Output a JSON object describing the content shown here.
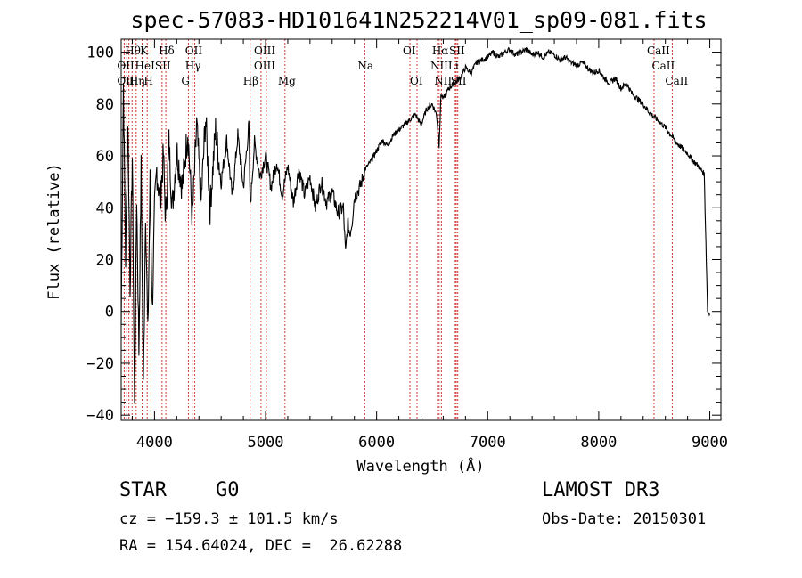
{
  "chart_data": {
    "type": "line",
    "title": "spec-57083-HD101641N252214V01_sp09-081.fits",
    "xlabel": "Wavelength (Å)",
    "ylabel": "Flux (relative)",
    "xlim": [
      3700,
      9100
    ],
    "ylim": [
      -42,
      105
    ],
    "xticks": [
      4000,
      5000,
      6000,
      7000,
      8000,
      9000
    ],
    "yticks": [
      -40,
      -20,
      0,
      20,
      40,
      60,
      80,
      100
    ],
    "series": [
      {
        "name": "flux",
        "x": [
          3700,
          3720,
          3740,
          3760,
          3780,
          3800,
          3820,
          3840,
          3860,
          3880,
          3900,
          3920,
          3940,
          3960,
          3980,
          4000,
          4020,
          4050,
          4080,
          4100,
          4130,
          4160,
          4200,
          4250,
          4300,
          4340,
          4380,
          4420,
          4460,
          4500,
          4550,
          4600,
          4650,
          4700,
          4750,
          4800,
          4850,
          4861,
          4900,
          4950,
          5000,
          5050,
          5100,
          5150,
          5200,
          5250,
          5300,
          5350,
          5400,
          5450,
          5500,
          5550,
          5600,
          5650,
          5700,
          5720,
          5740,
          5760,
          5780,
          5800,
          5850,
          5900,
          5950,
          6000,
          6050,
          6100,
          6150,
          6200,
          6250,
          6300,
          6350,
          6400,
          6450,
          6500,
          6540,
          6563,
          6580,
          6600,
          6650,
          6700,
          6750,
          6800,
          6850,
          6900,
          6950,
          7000,
          7050,
          7100,
          7150,
          7200,
          7250,
          7300,
          7350,
          7400,
          7450,
          7500,
          7550,
          7600,
          7650,
          7700,
          7750,
          7800,
          7850,
          7900,
          7950,
          8000,
          8050,
          8100,
          8150,
          8200,
          8250,
          8300,
          8350,
          8400,
          8450,
          8500,
          8550,
          8600,
          8650,
          8700,
          8750,
          8800,
          8850,
          8900,
          8950,
          8980,
          9000
        ],
        "y": [
          -5,
          88,
          20,
          75,
          10,
          60,
          -38,
          45,
          -15,
          55,
          -30,
          40,
          -10,
          50,
          0,
          38,
          55,
          42,
          60,
          35,
          65,
          40,
          62,
          48,
          70,
          35,
          72,
          42,
          75,
          40,
          70,
          50,
          66,
          44,
          68,
          48,
          72,
          40,
          65,
          52,
          60,
          48,
          58,
          45,
          56,
          42,
          55,
          45,
          52,
          40,
          50,
          42,
          46,
          38,
          40,
          22,
          34,
          30,
          35,
          44,
          48,
          55,
          58,
          62,
          66,
          64,
          68,
          70,
          72,
          74,
          76,
          72,
          78,
          80,
          76,
          64,
          84,
          82,
          86,
          88,
          90,
          94,
          92,
          96,
          97,
          98,
          100,
          98,
          100,
          101,
          99,
          100,
          101,
          99,
          100,
          98,
          100,
          99,
          97,
          98,
          96,
          95,
          96,
          94,
          92,
          93,
          90,
          88,
          90,
          86,
          88,
          84,
          82,
          80,
          77,
          75,
          73,
          71,
          68,
          65,
          63,
          61,
          58,
          56,
          53,
          0,
          -1
        ]
      }
    ],
    "line_labels": [
      {
        "label": "Hθ",
        "x": 3798,
        "row": 1
      },
      {
        "label": "K",
        "x": 3934,
        "row": 1
      },
      {
        "label": "Hδ",
        "x": 4102,
        "row": 1
      },
      {
        "label": "OII",
        "x": 4340,
        "row": 1
      },
      {
        "label": "OIII",
        "x": 4960,
        "row": 1
      },
      {
        "label": "OI",
        "x": 6300,
        "row": 1
      },
      {
        "label": "Hα",
        "x": 6563,
        "row": 1
      },
      {
        "label": "SII",
        "x": 6717,
        "row": 1
      },
      {
        "label": "CaII",
        "x": 8498,
        "row": 1
      },
      {
        "label": "OII",
        "x": 3727,
        "row": 2
      },
      {
        "label": "HeI",
        "x": 3889,
        "row": 2
      },
      {
        "label": "SII",
        "x": 4068,
        "row": 2
      },
      {
        "label": "Hγ",
        "x": 4340,
        "row": 2
      },
      {
        "label": "OIII",
        "x": 4959,
        "row": 2
      },
      {
        "label": "Na",
        "x": 5893,
        "row": 2
      },
      {
        "label": "NII",
        "x": 6548,
        "row": 2
      },
      {
        "label": "Li",
        "x": 6708,
        "row": 2
      },
      {
        "label": "CaII",
        "x": 8542,
        "row": 2
      },
      {
        "label": "OIII",
        "x": 3727,
        "row": 3
      },
      {
        "label": "Hη",
        "x": 3835,
        "row": 3
      },
      {
        "label": "H",
        "x": 3968,
        "row": 3
      },
      {
        "label": "G",
        "x": 4305,
        "row": 3
      },
      {
        "label": "Hβ",
        "x": 4861,
        "row": 3
      },
      {
        "label": "Mg",
        "x": 5175,
        "row": 3
      },
      {
        "label": "OI",
        "x": 6364,
        "row": 3
      },
      {
        "label": "NII",
        "x": 6583,
        "row": 3
      },
      {
        "label": "SII",
        "x": 6731,
        "row": 3
      },
      {
        "label": "CaII",
        "x": 8662,
        "row": 3
      }
    ],
    "line_markers": [
      3727,
      3750,
      3770,
      3798,
      3835,
      3889,
      3934,
      3968,
      4068,
      4102,
      4305,
      4340,
      4363,
      4861,
      4959,
      5007,
      5175,
      5893,
      6300,
      6364,
      6548,
      6563,
      6583,
      6708,
      6717,
      6731,
      8498,
      8542,
      8662
    ]
  },
  "info": {
    "obj_class": "STAR",
    "obj_subclass": "G0",
    "survey": "LAMOST DR3",
    "cz": "cz = −159.3 ± 101.5 km/s",
    "obs_date": "Obs-Date: 20150301",
    "ra_dec": "RA = 154.64024, DEC =  26.62288"
  }
}
